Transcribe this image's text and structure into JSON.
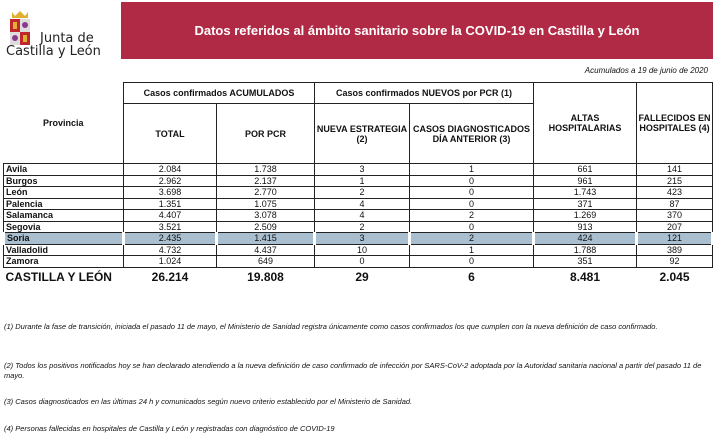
{
  "header": {
    "logo_text_line1": "Junta de",
    "logo_text_line2": "Castilla y León",
    "title": "Datos referidos al ámbito sanitario sobre la COVID-19 en Castilla y León",
    "date_note": "Acumulados a 19 de junio de 2020",
    "brand_color": "#b12a45",
    "highlight_color": "#a9bfcf"
  },
  "table": {
    "group_headers": {
      "accumulated": "Casos confirmados ACUMULADOS",
      "new_pcr": "Casos confirmados NUEVOS por PCR (1)"
    },
    "columns": [
      "Provincia",
      "TOTAL",
      "POR PCR",
      "NUEVA ESTRATEGIA (2)",
      "CASOS DIAGNOSTICADOS DÍA ANTERIOR (3)",
      "ALTAS HOSPITALARIAS",
      "FALLECIDOS EN HOSPITALES (4)"
    ],
    "rows": [
      [
        "Avila",
        "2.084",
        "1.738",
        "3",
        "1",
        "661",
        "141"
      ],
      [
        "Burgos",
        "2.962",
        "2.137",
        "1",
        "0",
        "961",
        "215"
      ],
      [
        "León",
        "3.698",
        "2.770",
        "2",
        "0",
        "1.743",
        "423"
      ],
      [
        "Palencia",
        "1.351",
        "1.075",
        "4",
        "0",
        "371",
        "87"
      ],
      [
        "Salamanca",
        "4.407",
        "3.078",
        "4",
        "2",
        "1.269",
        "370"
      ],
      [
        "Segovia",
        "3.521",
        "2.509",
        "2",
        "0",
        "913",
        "207"
      ],
      [
        "Soria",
        "2.435",
        "1.415",
        "3",
        "2",
        "424",
        "121"
      ],
      [
        "Valladolid",
        "4.732",
        "4.437",
        "10",
        "1",
        "1.788",
        "389"
      ],
      [
        "Zamora",
        "1.024",
        "649",
        "0",
        "0",
        "351",
        "92"
      ]
    ],
    "highlighted_row": "Soria",
    "total": [
      "CASTILLA Y LEÓN",
      "26.214",
      "19.808",
      "29",
      "6",
      "8.481",
      "2.045"
    ]
  },
  "notes": [
    "(1) Durante la fase de transición, iniciada el pasado 11 de mayo, el Ministerio de Sanidad registra únicamente como casos confirmados los que cumplen con la nueva definición de caso confirmado.",
    "(2) Todos los positivos notificados hoy se han declarado atendiendo a la nueva definición de caso confirmado de infección por SARS-CoV-2 adoptada por la Autoridad sanitaria nacional a partir del pasado 11 de mayo.",
    "(3) Casos diagnosticados en las últimas 24 h y comunicados según nuevo criterio establecido por el Ministerio de Sanidad.",
    "(4) Personas fallecidas en hospitales de Castilla y León y registradas con diagnóstico de COVID-19"
  ]
}
